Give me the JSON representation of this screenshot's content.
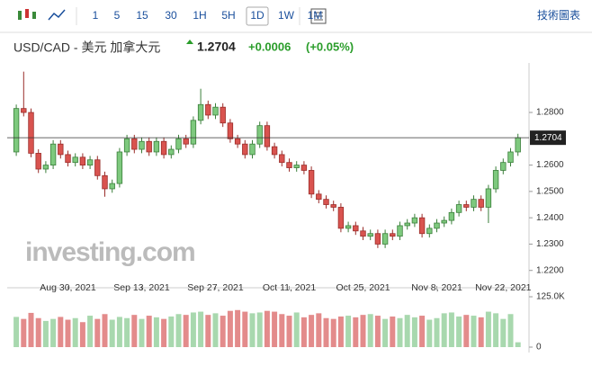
{
  "toolbar": {
    "intervals": [
      "1",
      "5",
      "15",
      "30",
      "1H",
      "5H",
      "1D",
      "1W",
      "1M"
    ],
    "active": "1D",
    "right_label": "技術圖表"
  },
  "header": {
    "symbol": "USD/CAD - 美元 加拿大元",
    "price": "1.2704",
    "change": "+0.0006",
    "change_pct": "(+0.05%)"
  },
  "watermark": "investing.com",
  "chart_data": {
    "type": "candlestick",
    "categories": [
      null,
      null,
      null,
      null,
      null,
      null,
      null,
      "Aug 30, 2021",
      null,
      null,
      null,
      null,
      null,
      null,
      null,
      null,
      null,
      "Sep 13, 2021",
      null,
      null,
      null,
      null,
      null,
      null,
      null,
      null,
      null,
      "Sep 27, 2021",
      null,
      null,
      null,
      null,
      null,
      null,
      null,
      null,
      null,
      "Oct 11, 2021",
      null,
      null,
      null,
      null,
      null,
      null,
      null,
      null,
      null,
      "Oct 25, 2021",
      null,
      null,
      null,
      null,
      null,
      null,
      null,
      null,
      null,
      "Nov 8, 2021",
      null,
      null,
      null,
      null,
      null,
      null,
      null,
      null,
      "Nov 22, 2021",
      null,
      null
    ],
    "open": [
      1.265,
      1.2815,
      1.28,
      1.2645,
      1.2585,
      1.26,
      1.268,
      1.264,
      1.261,
      1.263,
      1.26,
      1.262,
      1.256,
      1.251,
      1.253,
      1.265,
      1.27,
      1.266,
      1.269,
      1.265,
      1.269,
      1.264,
      1.266,
      1.27,
      1.268,
      1.277,
      1.283,
      1.279,
      1.282,
      1.276,
      1.27,
      1.268,
      1.264,
      1.268,
      1.275,
      1.267,
      1.264,
      1.261,
      1.259,
      1.26,
      1.258,
      1.249,
      1.247,
      1.245,
      1.244,
      1.236,
      1.237,
      1.235,
      1.233,
      1.234,
      1.23,
      1.234,
      1.233,
      1.237,
      1.238,
      1.24,
      1.234,
      1.236,
      1.238,
      1.239,
      1.242,
      1.245,
      1.244,
      1.247,
      1.244,
      1.251,
      1.258,
      1.261,
      1.265
    ],
    "high": [
      1.283,
      1.2955,
      1.2815,
      1.266,
      1.2615,
      1.2695,
      1.2695,
      1.2655,
      1.2645,
      1.2645,
      1.2635,
      1.2635,
      1.2575,
      1.2545,
      1.2665,
      1.2715,
      1.2715,
      1.2705,
      1.2705,
      1.2705,
      1.2705,
      1.2675,
      1.2715,
      1.2715,
      1.2785,
      1.289,
      1.2845,
      1.2835,
      1.2835,
      1.2775,
      1.2715,
      1.2695,
      1.2695,
      1.2765,
      1.2765,
      1.2685,
      1.2655,
      1.2625,
      1.2615,
      1.2615,
      1.2595,
      1.2505,
      1.2485,
      1.2465,
      1.2455,
      1.2385,
      1.2385,
      1.2365,
      1.2355,
      1.2355,
      1.2355,
      1.2355,
      1.2385,
      1.2395,
      1.2415,
      1.2415,
      1.2375,
      1.2395,
      1.2405,
      1.2435,
      1.2465,
      1.2465,
      1.2485,
      1.2485,
      1.2525,
      1.2595,
      1.2625,
      1.2665,
      1.2719
    ],
    "low": [
      1.2635,
      1.2785,
      1.263,
      1.257,
      1.257,
      1.2585,
      1.2625,
      1.2595,
      1.2595,
      1.2585,
      1.2585,
      1.2545,
      1.248,
      1.2495,
      1.2515,
      1.2635,
      1.2645,
      1.2645,
      1.2635,
      1.2635,
      1.2625,
      1.2625,
      1.2645,
      1.2665,
      1.2665,
      1.2755,
      1.2775,
      1.2775,
      1.2745,
      1.2685,
      1.2665,
      1.2625,
      1.2625,
      1.2665,
      1.2655,
      1.2625,
      1.2595,
      1.2575,
      1.2575,
      1.2565,
      1.2475,
      1.2455,
      1.2435,
      1.2425,
      1.2345,
      1.2345,
      1.2335,
      1.2315,
      1.2315,
      1.2285,
      1.2285,
      1.2315,
      1.2315,
      1.2355,
      1.2365,
      1.2325,
      1.2325,
      1.2345,
      1.2365,
      1.2375,
      1.2405,
      1.2425,
      1.2425,
      1.2425,
      1.238,
      1.2495,
      1.2565,
      1.2595,
      1.2635
    ],
    "close": [
      1.2815,
      1.28,
      1.2645,
      1.2585,
      1.26,
      1.268,
      1.264,
      1.261,
      1.263,
      1.26,
      1.262,
      1.256,
      1.251,
      1.253,
      1.265,
      1.27,
      1.266,
      1.269,
      1.265,
      1.269,
      1.264,
      1.266,
      1.27,
      1.268,
      1.277,
      1.283,
      1.279,
      1.282,
      1.276,
      1.27,
      1.268,
      1.264,
      1.268,
      1.275,
      1.267,
      1.264,
      1.261,
      1.259,
      1.26,
      1.258,
      1.249,
      1.247,
      1.245,
      1.244,
      1.236,
      1.237,
      1.235,
      1.233,
      1.234,
      1.23,
      1.234,
      1.233,
      1.237,
      1.238,
      1.24,
      1.234,
      1.236,
      1.238,
      1.239,
      1.242,
      1.245,
      1.244,
      1.247,
      1.244,
      1.251,
      1.258,
      1.261,
      1.265,
      1.2704
    ],
    "volume": [
      75000,
      70000,
      85000,
      72000,
      65000,
      70000,
      75000,
      68000,
      72000,
      62000,
      78000,
      70000,
      82000,
      68000,
      75000,
      72000,
      80000,
      70000,
      78000,
      74000,
      70000,
      76000,
      82000,
      80000,
      86000,
      88000,
      80000,
      84000,
      78000,
      90000,
      92000,
      88000,
      84000,
      86000,
      90000,
      88000,
      82000,
      78000,
      86000,
      74000,
      80000,
      84000,
      72000,
      70000,
      76000,
      78000,
      74000,
      80000,
      82000,
      78000,
      70000,
      76000,
      72000,
      80000,
      74000,
      78000,
      68000,
      72000,
      84000,
      86000,
      76000,
      80000,
      78000,
      74000,
      88000,
      84000,
      70000,
      82000,
      12000
    ],
    "up_color": "#7ec97e",
    "down_color": "#d9534f",
    "up_volume_color": "#a8d8ae",
    "down_volume_color": "#e38b8b",
    "ylim": [
      1.2141,
      1.2988
    ],
    "yticks": [
      {
        "value": 1.28,
        "label": "1.2800"
      },
      {
        "value": 1.26,
        "label": "1.2600"
      },
      {
        "value": 1.25,
        "label": "1.2500"
      },
      {
        "value": 1.24,
        "label": "1.2400"
      },
      {
        "value": 1.23,
        "label": "1.2300"
      },
      {
        "value": 1.22,
        "label": "1.2200"
      }
    ],
    "price_line": {
      "value": 1.2704,
      "label": "1.2704"
    },
    "vlim": [
      0,
      125000
    ],
    "vticks": [
      {
        "value": 125000,
        "label": "125.0K"
      },
      0
    ]
  }
}
